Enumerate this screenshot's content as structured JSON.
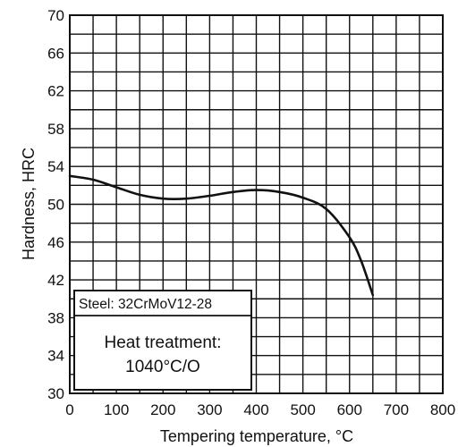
{
  "chart_data": {
    "type": "line",
    "xlabel": "Tempering temperature, °C",
    "ylabel": "Hardness, HRC",
    "xlim": [
      0,
      800
    ],
    "ylim": [
      30,
      70
    ],
    "xticks": [
      "0",
      "100",
      "200",
      "300",
      "400",
      "500",
      "600",
      "700",
      "800"
    ],
    "yticks": [
      "30",
      "34",
      "38",
      "42",
      "46",
      "50",
      "54",
      "58",
      "62",
      "66",
      "70"
    ],
    "grid": true,
    "series": [
      {
        "x": [
          0,
          50,
          100,
          150,
          200,
          250,
          300,
          350,
          400,
          450,
          500,
          550,
          600,
          625,
          650
        ],
        "y": [
          53.0,
          52.6,
          51.8,
          51.0,
          50.6,
          50.6,
          50.9,
          51.3,
          51.5,
          51.3,
          50.7,
          49.5,
          46.5,
          44.0,
          40.4
        ]
      }
    ],
    "annotations": {
      "steel": "Steel: 32CrMoV12-28",
      "heat_treatment_title": "Heat treatment:",
      "heat_treatment_value": "1040°C/O"
    }
  }
}
